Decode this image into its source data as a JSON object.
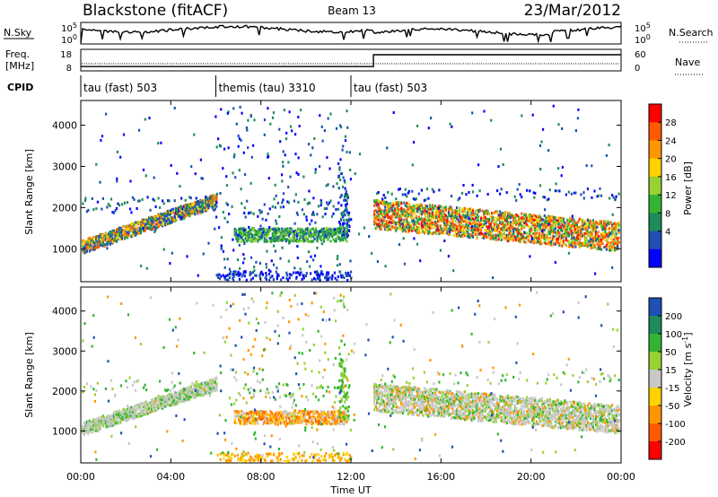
{
  "header": {
    "station": "Blackstone (fitACF)",
    "beam": "Beam 13",
    "date": "23/Mar/2012"
  },
  "noise_panel": {
    "left_label": "N.Sky",
    "right_label": "N.Search",
    "left_ticks": [
      "10^5",
      "10^0"
    ],
    "right_ticks": [
      "10^5",
      "10^0"
    ]
  },
  "freq_panel": {
    "left_label_line1": "Freq.",
    "left_label_line2": "[MHz]",
    "right_label": "Nave",
    "left_ticks": [
      "18",
      "8"
    ],
    "right_ticks": [
      "60",
      "0"
    ],
    "freq_level_mhz": 11,
    "nave_step": [
      {
        "hour": 0,
        "level": 0.2
      },
      {
        "hour": 13.0,
        "level": 0.2
      },
      {
        "hour": 13.0,
        "level": 0.75
      },
      {
        "hour": 24,
        "level": 0.75
      }
    ]
  },
  "cpid": {
    "label": "CPID",
    "segments": [
      {
        "start_hour": 0,
        "end_hour": 6.0,
        "label": "tau (fast) 503"
      },
      {
        "start_hour": 6.0,
        "end_hour": 12.0,
        "label": "themis (tau) 3310"
      },
      {
        "start_hour": 12.0,
        "end_hour": 24,
        "label": "tau (fast) 503"
      }
    ]
  },
  "chart_data": [
    {
      "type": "heatmap",
      "name": "power",
      "xlabel": "",
      "ylabel": "Slant Range [km]",
      "xlim": [
        0,
        24
      ],
      "ylim": [
        200,
        4600
      ],
      "y_ticks": [
        1000,
        2000,
        3000,
        4000
      ],
      "colorbar": {
        "label": "Power [dB]",
        "ticks": [
          "28",
          "24",
          "20",
          "16",
          "12",
          "8",
          "4"
        ],
        "colors": [
          "#ff0000",
          "#ff5a00",
          "#ff9600",
          "#ffd200",
          "#96d232",
          "#32b432",
          "#1e8c5a",
          "#1e50b4",
          "#0000ff"
        ]
      },
      "bands": [
        {
          "h0": 0.0,
          "h1": 6.0,
          "r0": 950,
          "r1": 2350,
          "level": "mixed"
        },
        {
          "h0": 6.8,
          "h1": 11.8,
          "r0": 1150,
          "r1": 1550,
          "level": "mid"
        },
        {
          "h0": 13.0,
          "h1": 24.0,
          "r0": 1250,
          "r1": 2100,
          "level": "high"
        }
      ]
    },
    {
      "type": "heatmap",
      "name": "velocity",
      "xlabel": "Time UT",
      "ylabel": "Slant Range [km]",
      "xlim": [
        0,
        24
      ],
      "ylim": [
        200,
        4600
      ],
      "x_ticks": [
        "00:00",
        "04:00",
        "08:00",
        "12:00",
        "16:00",
        "20:00",
        "00:00"
      ],
      "y_ticks": [
        1000,
        2000,
        3000,
        4000
      ],
      "colorbar": {
        "label": "Velocity [m s^-1]",
        "ticks": [
          "200",
          "100",
          "50",
          "15",
          "-15",
          "-50",
          "-100",
          "-200"
        ],
        "colors": [
          "#1e50b4",
          "#1e8c5a",
          "#32b432",
          "#96d232",
          "#c8c8c8",
          "#ffd200",
          "#ff9600",
          "#ff5a00",
          "#ff0000"
        ]
      }
    }
  ]
}
